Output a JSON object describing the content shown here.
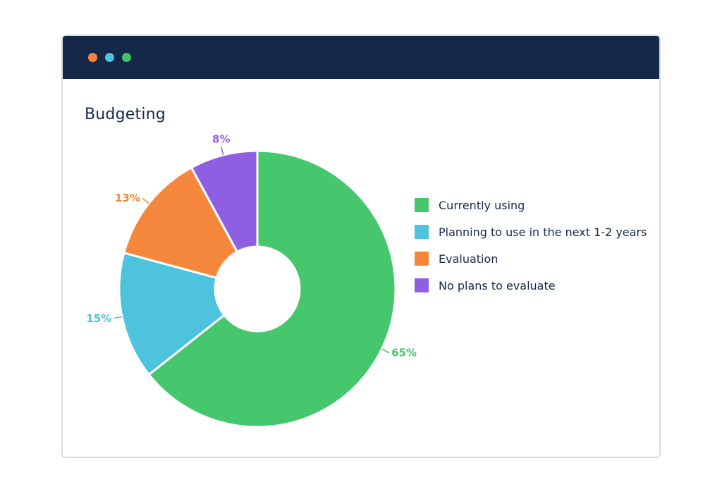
{
  "window": {
    "titlebar_color": "#15284a",
    "dots": [
      {
        "name": "orange",
        "color": "#f5843a"
      },
      {
        "name": "blue",
        "color": "#4dc2df"
      },
      {
        "name": "green",
        "color": "#46c36e"
      }
    ]
  },
  "chart_data": {
    "type": "pie",
    "style": "donut",
    "title": "Budgeting",
    "slices": [
      {
        "label": "Currently using",
        "value": 65,
        "display": "65%",
        "color": "#47c76d"
      },
      {
        "label": "Planning to use in the next 1-2 years",
        "value": 15,
        "display": "15%",
        "color": "#4ec3dd"
      },
      {
        "label": "Evaluation",
        "value": 13,
        "display": "13%",
        "color": "#f5873c"
      },
      {
        "label": "No plans to evaluate",
        "value": 8,
        "display": "8%",
        "color": "#8f5fe3"
      }
    ],
    "legend_position": "right"
  }
}
